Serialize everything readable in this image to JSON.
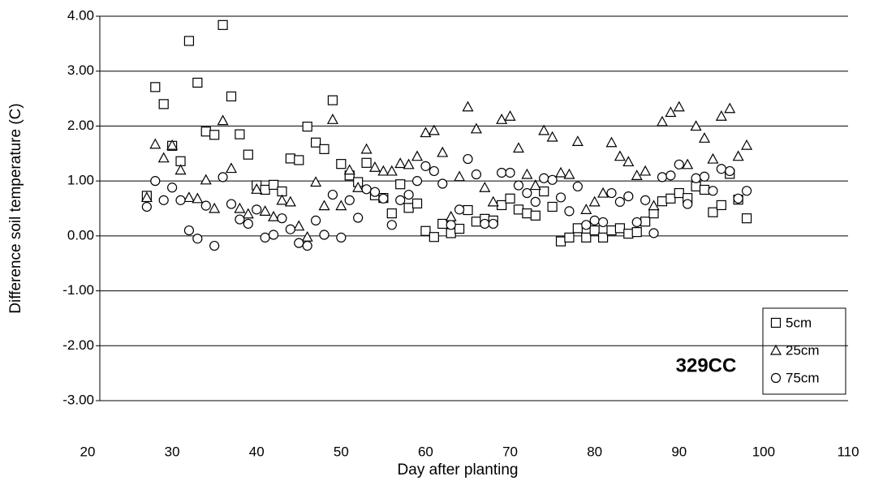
{
  "chart_data": {
    "type": "scatter",
    "annotation": "329CC",
    "x_label": "Day after planting",
    "y_label": "Difference soil temperature (C)",
    "xlim": [
      20,
      110
    ],
    "xticks": [
      20,
      30,
      40,
      50,
      60,
      70,
      80,
      90,
      100,
      110
    ],
    "ylim": [
      -3,
      4
    ],
    "yticks": [
      {
        "value": -3,
        "label": "-3.00"
      },
      {
        "value": -2,
        "label": "-2.00"
      },
      {
        "value": -1,
        "label": "-1.00"
      },
      {
        "value": 0,
        "label": "0.00"
      },
      {
        "value": 1,
        "label": "1.00"
      },
      {
        "value": 2,
        "label": "2.00"
      },
      {
        "value": 3,
        "label": "3.00"
      },
      {
        "value": 4,
        "label": "4.00"
      }
    ],
    "grid": true,
    "legend": "bottom-right",
    "x": [
      27,
      28,
      29,
      30,
      31,
      32,
      33,
      34,
      35,
      36,
      37,
      38,
      39,
      40,
      41,
      42,
      43,
      44,
      45,
      46,
      47,
      48,
      49,
      50,
      51,
      52,
      53,
      54,
      55,
      56,
      57,
      58,
      59,
      60,
      61,
      62,
      63,
      64,
      65,
      66,
      67,
      68,
      69,
      70,
      71,
      72,
      73,
      74,
      75,
      76,
      77,
      78,
      79,
      80,
      81,
      82,
      83,
      84,
      85,
      86,
      87,
      88,
      89,
      90,
      91,
      92,
      93,
      94,
      95,
      96,
      97,
      98
    ],
    "series": [
      {
        "name": "5cm",
        "marker": "square",
        "color": "#000000",
        "values": [
          0.73,
          2.71,
          2.4,
          1.64,
          1.36,
          3.55,
          2.79,
          1.9,
          1.84,
          3.84,
          2.54,
          1.85,
          1.48,
          0.92,
          0.84,
          0.93,
          0.81,
          1.41,
          1.38,
          1.99,
          1.7,
          1.58,
          2.47,
          1.31,
          1.1,
          0.98,
          1.33,
          0.74,
          0.69,
          0.41,
          0.94,
          0.51,
          0.59,
          0.09,
          -0.02,
          0.22,
          0.05,
          0.13,
          0.47,
          0.26,
          0.31,
          0.28,
          0.56,
          0.68,
          0.48,
          0.41,
          0.37,
          0.81,
          0.53,
          -0.1,
          -0.03,
          0.14,
          -0.03,
          0.1,
          -0.03,
          0.1,
          0.14,
          0.04,
          0.07,
          0.26,
          0.41,
          0.63,
          0.68,
          0.78,
          0.69,
          0.9,
          0.84,
          0.43,
          0.56,
          1.13,
          0.66,
          0.32
        ]
      },
      {
        "name": "25cm",
        "marker": "triangle",
        "color": "#000000",
        "values": [
          0.7,
          1.67,
          1.42,
          1.65,
          1.2,
          0.7,
          0.68,
          1.02,
          0.5,
          2.1,
          1.23,
          0.5,
          0.4,
          0.85,
          0.45,
          0.35,
          0.65,
          0.62,
          0.18,
          -0.02,
          0.98,
          0.55,
          2.12,
          0.55,
          1.2,
          0.88,
          1.58,
          1.25,
          1.18,
          1.18,
          1.32,
          1.3,
          1.45,
          1.88,
          1.92,
          1.52,
          0.35,
          1.08,
          2.35,
          1.95,
          0.88,
          0.62,
          2.12,
          2.18,
          1.6,
          1.12,
          0.92,
          1.92,
          1.8,
          1.15,
          1.12,
          1.72,
          0.48,
          0.62,
          0.78,
          1.7,
          1.45,
          1.35,
          1.1,
          1.18,
          0.55,
          2.08,
          2.25,
          2.35,
          1.3,
          2.0,
          1.78,
          1.4,
          2.18,
          2.32,
          1.45,
          1.65
        ]
      },
      {
        "name": "75cm",
        "marker": "circle",
        "color": "#000000",
        "values": [
          0.53,
          1.0,
          0.65,
          0.88,
          0.65,
          0.1,
          -0.05,
          0.55,
          -0.18,
          1.07,
          0.58,
          0.3,
          0.22,
          0.48,
          -0.03,
          0.02,
          0.32,
          0.12,
          -0.13,
          -0.18,
          0.28,
          0.02,
          0.75,
          -0.03,
          0.65,
          0.33,
          0.85,
          0.8,
          0.68,
          0.2,
          0.65,
          0.75,
          1.0,
          1.27,
          1.18,
          0.95,
          0.2,
          0.48,
          1.4,
          1.12,
          0.22,
          0.22,
          1.15,
          1.15,
          0.92,
          0.78,
          0.62,
          1.05,
          1.02,
          0.7,
          0.45,
          0.9,
          0.2,
          0.28,
          0.25,
          0.78,
          0.62,
          0.72,
          0.25,
          0.65,
          0.05,
          1.07,
          1.1,
          1.3,
          0.58,
          1.05,
          1.08,
          0.82,
          1.22,
          1.18,
          0.68,
          0.82
        ]
      }
    ]
  }
}
